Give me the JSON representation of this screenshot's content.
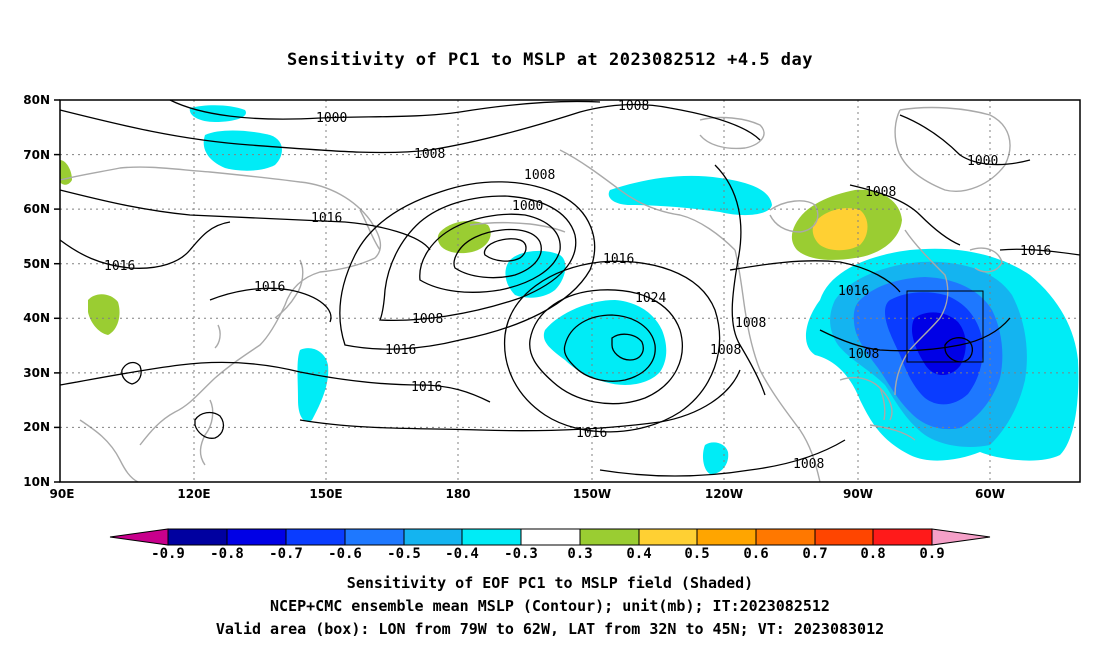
{
  "title": "Sensitivity of PC1 to MSLP at 2023082512 +4.5 day",
  "axes": {
    "lat_ticks": [
      "80N",
      "70N",
      "60N",
      "50N",
      "40N",
      "30N",
      "20N",
      "10N"
    ],
    "lon_ticks": [
      "90E",
      "120E",
      "150E",
      "180",
      "150W",
      "120W",
      "90W",
      "60W"
    ]
  },
  "contour_labels": [
    "1000",
    "1008",
    "1000",
    "1016",
    "1008",
    "1016",
    "1008",
    "1000",
    "1016",
    "1008",
    "1016",
    "1024",
    "1008",
    "1008",
    "1016",
    "1016",
    "1016",
    "1016",
    "1008",
    "1016",
    "1008",
    "1008"
  ],
  "colorbar": {
    "colors": [
      "#c8008c",
      "#0000a0",
      "#0000e6",
      "#0a3cff",
      "#1e78ff",
      "#14b4f0",
      "#00ecf6",
      "#ffffff",
      "#9acd32",
      "#ffd033",
      "#ffa500",
      "#ff7800",
      "#ff4500",
      "#ff1a1a",
      "#f5a0c8"
    ],
    "labels": [
      "-0.9",
      "-0.8",
      "-0.7",
      "-0.6",
      "-0.5",
      "-0.4",
      "-0.3",
      "0.3",
      "0.4",
      "0.5",
      "0.6",
      "0.7",
      "0.8",
      "0.9"
    ]
  },
  "footer": {
    "line1": "Sensitivity of EOF PC1 to MSLP field (Shaded)",
    "line2": "NCEP+CMC ensemble mean MSLP (Contour); unit(mb); IT:2023082512",
    "line3": "Valid area (box): LON from 79W to 62W, LAT from 32N to 45N; VT: 2023083012"
  }
}
